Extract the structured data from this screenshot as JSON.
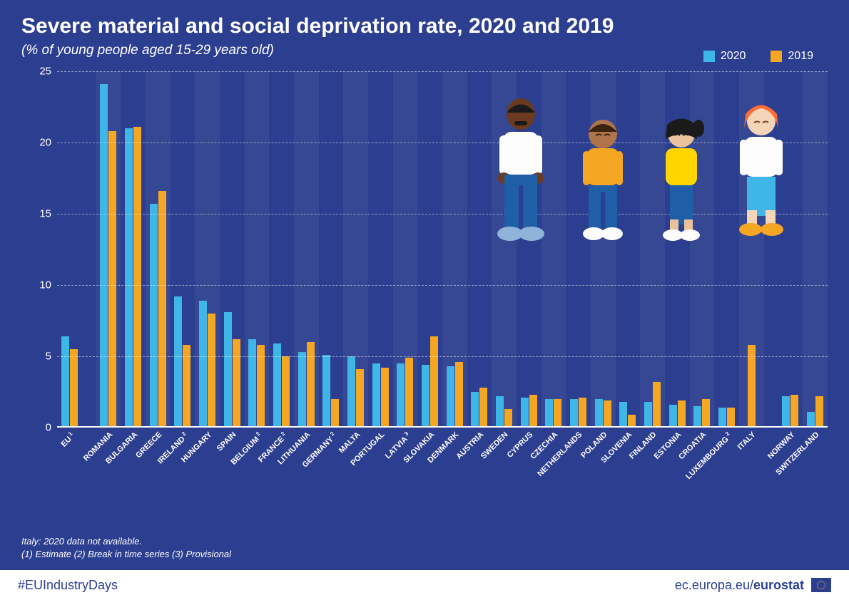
{
  "title": "Severe material and social deprivation rate, 2020 and 2019",
  "subtitle": "(% of young people aged 15-29 years old)",
  "legend": [
    {
      "label": "2020",
      "color": "#3fb6e8"
    },
    {
      "label": "2019",
      "color": "#f5a623"
    }
  ],
  "chart": {
    "type": "grouped-bar",
    "ymax": 25,
    "ytick_step": 5,
    "bar_colors": {
      "2020": "#3fb6e8",
      "2019": "#f5a623"
    },
    "background": "#2c3e8f",
    "stripe_color": "rgba(255,255,255,0.05)",
    "grid_color": "rgba(255,255,255,0.5)",
    "countries": [
      {
        "label": "EU",
        "sup": "1",
        "v2020": 6.4,
        "v2019": 5.5
      },
      {
        "gap": true
      },
      {
        "label": "ROMANIA",
        "sup": "",
        "v2020": 24.1,
        "v2019": 20.8
      },
      {
        "label": "BULGARIA",
        "sup": "",
        "v2020": 21.0,
        "v2019": 21.1
      },
      {
        "label": "GREECE",
        "sup": "",
        "v2020": 15.7,
        "v2019": 16.6
      },
      {
        "label": "IRELAND",
        "sup": "2",
        "v2020": 9.2,
        "v2019": 5.8
      },
      {
        "label": "HUNGARY",
        "sup": "",
        "v2020": 8.9,
        "v2019": 8.0
      },
      {
        "label": "SPAIN",
        "sup": "",
        "v2020": 8.1,
        "v2019": 6.2
      },
      {
        "label": "BELGIUM",
        "sup": "2",
        "v2020": 6.2,
        "v2019": 5.8
      },
      {
        "label": "FRANCE",
        "sup": "2",
        "v2020": 5.9,
        "v2019": 5.0
      },
      {
        "label": "LITHUANIA",
        "sup": "",
        "v2020": 5.3,
        "v2019": 6.0
      },
      {
        "label": "GERMANY",
        "sup": "2",
        "v2020": 5.1,
        "v2019": 2.0
      },
      {
        "label": "MALTA",
        "sup": "",
        "v2020": 5.0,
        "v2019": 4.1
      },
      {
        "label": "PORTUGAL",
        "sup": "",
        "v2020": 4.5,
        "v2019": 4.2
      },
      {
        "label": "LATVIA",
        "sup": "3",
        "v2020": 4.5,
        "v2019": 4.9
      },
      {
        "label": "SLOVAKIA",
        "sup": "",
        "v2020": 4.4,
        "v2019": 6.4
      },
      {
        "label": "DENMARK",
        "sup": "",
        "v2020": 4.3,
        "v2019": 4.6
      },
      {
        "label": "AUSTRIA",
        "sup": "",
        "v2020": 2.5,
        "v2019": 2.8
      },
      {
        "label": "SWEDEN",
        "sup": "",
        "v2020": 2.2,
        "v2019": 1.3
      },
      {
        "label": "CYPRUS",
        "sup": "",
        "v2020": 2.1,
        "v2019": 2.3
      },
      {
        "label": "CZECHIA",
        "sup": "",
        "v2020": 2.0,
        "v2019": 2.0
      },
      {
        "label": "NETHERLANDS",
        "sup": "",
        "v2020": 2.0,
        "v2019": 2.1
      },
      {
        "label": "POLAND",
        "sup": "",
        "v2020": 2.0,
        "v2019": 1.9
      },
      {
        "label": "SLOVENIA",
        "sup": "",
        "v2020": 1.8,
        "v2019": 0.9
      },
      {
        "label": "FINLAND",
        "sup": "",
        "v2020": 1.8,
        "v2019": 3.2
      },
      {
        "label": "ESTONIA",
        "sup": "",
        "v2020": 1.6,
        "v2019": 1.9
      },
      {
        "label": "CROATIA",
        "sup": "",
        "v2020": 1.5,
        "v2019": 2.0
      },
      {
        "label": "LUXEMBOURG",
        "sup": "2",
        "v2020": 1.4,
        "v2019": 1.4
      },
      {
        "label": "ITALY",
        "sup": "",
        "v2020": null,
        "v2019": 5.8
      },
      {
        "gap": true
      },
      {
        "label": "NORWAY",
        "sup": "",
        "v2020": 2.2,
        "v2019": 2.3
      },
      {
        "label": "SWITZERLAND",
        "sup": "",
        "v2020": 1.1,
        "v2019": 2.2
      }
    ]
  },
  "footnotes": [
    "Italy: 2020 data not available.",
    "(1) Estimate (2) Break in time series (3) Provisional"
  ],
  "footer": {
    "hashtag": "#EUIndustryDays",
    "source_prefix": "ec.europa.eu/",
    "source_bold": "eurostat"
  }
}
